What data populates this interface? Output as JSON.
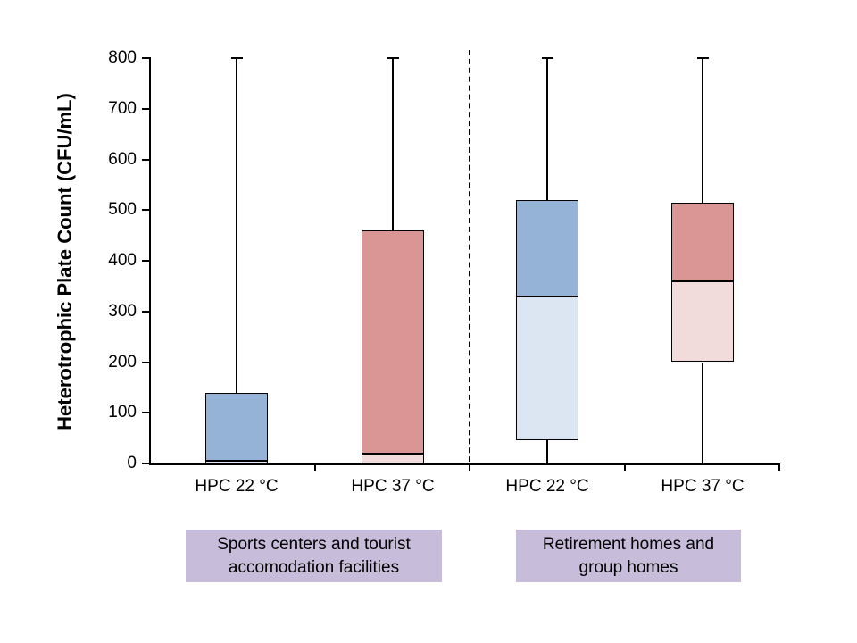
{
  "chart_data": {
    "type": "boxplot",
    "title": "",
    "ylabel": "Heterotrophic Plate Count (CFU/mL)",
    "xlabel": "",
    "ylim": [
      0,
      800
    ],
    "yticks": [
      0,
      100,
      200,
      300,
      400,
      500,
      600,
      700,
      800
    ],
    "grid": false,
    "legend": "none",
    "categories": [
      "HPC 22 °C",
      "HPC 37 °C",
      "HPC 22 °C",
      "HPC 37 °C"
    ],
    "series": [
      {
        "category": "HPC 22 °C",
        "group": "Sports centers and tourist accomodation facilities",
        "whisker_low": 0,
        "q1": 0,
        "median": 5,
        "q3": 140,
        "whisker_high": 800,
        "lower_box_color": "#DCE6F2",
        "upper_box_color": "#95B3D7"
      },
      {
        "category": "HPC 37 °C",
        "group": "Sports centers and tourist accomodation facilities",
        "whisker_low": 0,
        "q1": 0,
        "median": 20,
        "q3": 460,
        "whisker_high": 800,
        "lower_box_color": "#F2DCDB",
        "upper_box_color": "#D99694"
      },
      {
        "category": "HPC 22 °C",
        "group": "Retirement homes and group homes",
        "whisker_low": 0,
        "q1": 45,
        "median": 330,
        "q3": 520,
        "whisker_high": 800,
        "lower_box_color": "#DCE6F2",
        "upper_box_color": "#95B3D7"
      },
      {
        "category": "HPC 37 °C",
        "group": "Retirement homes and group homes",
        "whisker_low": 0,
        "q1": 200,
        "median": 360,
        "q3": 515,
        "whisker_high": 800,
        "lower_box_color": "#F2DCDB",
        "upper_box_color": "#D99694"
      }
    ],
    "separator": {
      "style": "vertical dashed line between category 2 and 3"
    },
    "group_labels": [
      {
        "line1": "Sports centers and tourist",
        "line2": "accomodation facilities",
        "bg_color": "#C7BDDA"
      },
      {
        "line1": "Retirement homes and",
        "line2": "group homes",
        "bg_color": "#C7BDDA"
      }
    ]
  },
  "colors": {
    "background": "#FFFFFF",
    "axis": "#000000",
    "text": "#000000",
    "blue_dark": "#95B3D7",
    "blue_light": "#DCE6F2",
    "red_dark": "#D99694",
    "red_light": "#F2DCDB",
    "group_label_bg": "#C7BDDA"
  }
}
